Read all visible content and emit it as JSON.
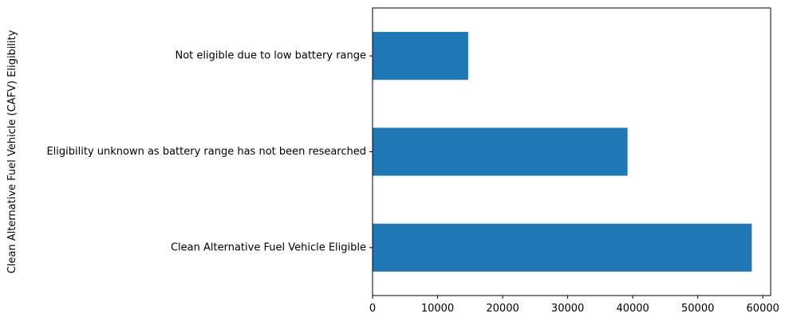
{
  "chart_data": {
    "type": "bar",
    "orientation": "horizontal",
    "title": "",
    "xlabel": "",
    "ylabel": "Clean Alternative Fuel Vehicle (CAFV) Eligibility",
    "categories": [
      "Not eligible due to low battery range",
      "Eligibility unknown as battery range has not been researched",
      "Clean Alternative Fuel Vehicle Eligible"
    ],
    "values": [
      14700,
      39200,
      58300
    ],
    "xlim": [
      0,
      61200
    ],
    "xticks": [
      0,
      10000,
      20000,
      30000,
      40000,
      50000,
      60000
    ],
    "xtick_labels": [
      "0",
      "10000",
      "20000",
      "30000",
      "40000",
      "50000",
      "60000"
    ],
    "bar_color": "#1f77b4",
    "grid": false,
    "legend": "none"
  }
}
